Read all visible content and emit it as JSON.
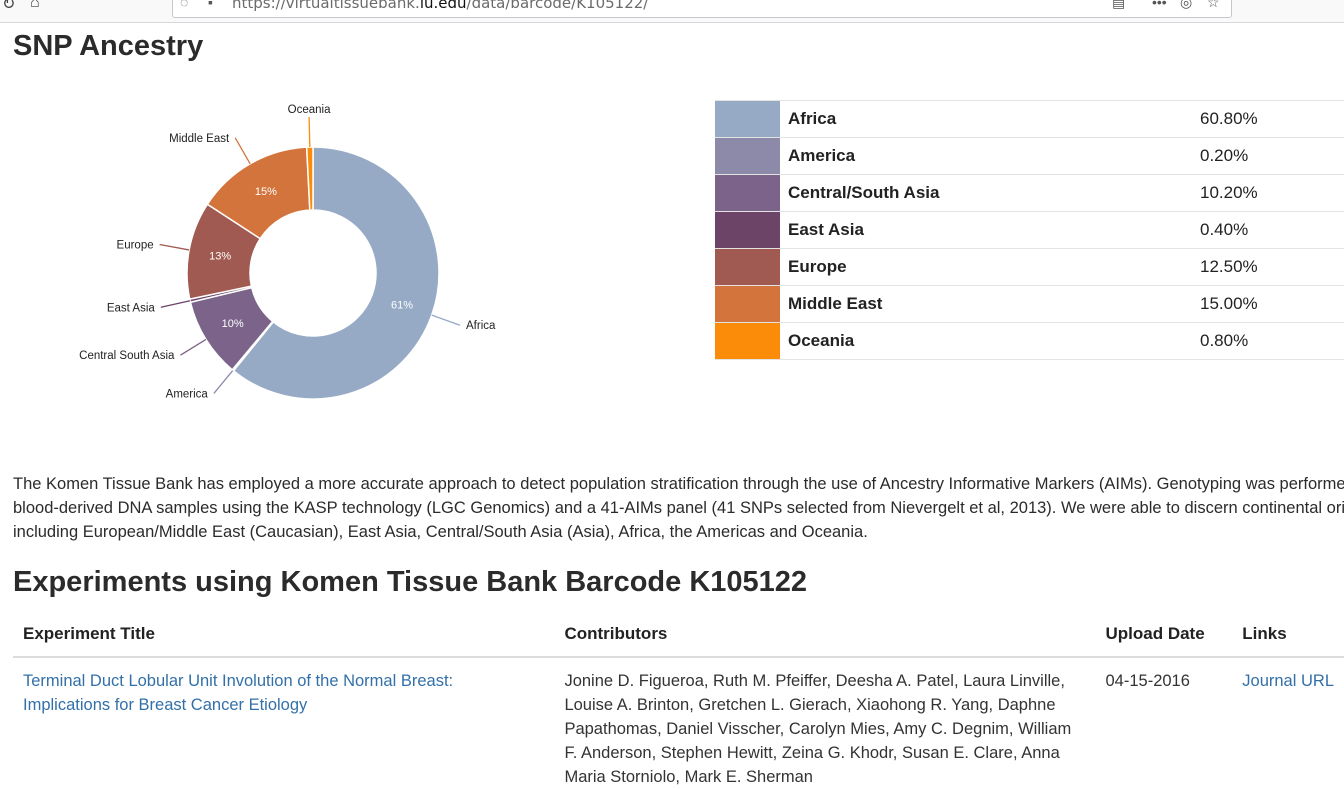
{
  "browser": {
    "url_prefix": "https://virtualtissuebank.",
    "url_domain": "iu.edu",
    "url_path": "/data/barcode/K105122/"
  },
  "section_title": "SNP Ancestry",
  "chart_data": {
    "type": "pie",
    "donut": true,
    "slices": [
      {
        "name": "Africa",
        "value": 60.8,
        "label": "61%",
        "color": "#96aac5"
      },
      {
        "name": "America",
        "value": 0.2,
        "label": "",
        "color": "#8d89a8"
      },
      {
        "name": "Central/South Asia",
        "outer_label": "Central South Asia",
        "value": 10.2,
        "label": "10%",
        "color": "#7b6389"
      },
      {
        "name": "East Asia",
        "value": 0.4,
        "label": "",
        "color": "#6b4467"
      },
      {
        "name": "Europe",
        "value": 12.5,
        "label": "13%",
        "color": "#a05a52"
      },
      {
        "name": "Middle East",
        "value": 15.0,
        "label": "15%",
        "color": "#d3743c"
      },
      {
        "name": "Oceania",
        "value": 0.8,
        "label": "",
        "color": "#fb8c0a"
      }
    ]
  },
  "legend": [
    {
      "name": "Africa",
      "pct": "60.80%",
      "color": "#96aac5"
    },
    {
      "name": "America",
      "pct": "0.20%",
      "color": "#8d89a8"
    },
    {
      "name": "Central/South Asia",
      "pct": "10.20%",
      "color": "#7b6389"
    },
    {
      "name": "East Asia",
      "pct": "0.40%",
      "color": "#6b4467"
    },
    {
      "name": "Europe",
      "pct": "12.50%",
      "color": "#a05a52"
    },
    {
      "name": "Middle East",
      "pct": "15.00%",
      "color": "#d3743c"
    },
    {
      "name": "Oceania",
      "pct": "0.80%",
      "color": "#fb8c0a"
    }
  ],
  "description": "The Komen Tissue Bank has employed a more accurate approach to detect population stratification through the use of Ancestry Informative Markers (AIMs). Genotyping was performed on blood-derived DNA samples using the KASP technology (LGC Genomics) and a 41-AIMs panel (41 SNPs selected from Nievergelt et al, 2013). We were able to discern continental origins including European/Middle East (Caucasian), East Asia, Central/South Asia (Asia), Africa, the Americas and Oceania.",
  "experiments": {
    "title": "Experiments using Komen Tissue Bank Barcode K105122",
    "headers": {
      "title": "Experiment Title",
      "contributors": "Contributors",
      "date": "Upload Date",
      "links": "Links"
    },
    "rows": [
      {
        "title": "Terminal Duct Lobular Unit Involution of the Normal Breast: Implications for Breast Cancer Etiology",
        "contributors": "Jonine D. Figueroa, Ruth M. Pfeiffer, Deesha A. Patel, Laura Linville, Louise A. Brinton, Gretchen L. Gierach, Xiaohong R. Yang, Daphne Papathomas, Daniel Visscher, Carolyn Mies, Amy C. Degnim, William F. Anderson, Stephen Hewitt, Zeina G. Khodr, Susan E. Clare, Anna Maria Storniolo, Mark E. Sherman",
        "date": "04-15-2016",
        "link": "Journal URL"
      }
    ]
  }
}
